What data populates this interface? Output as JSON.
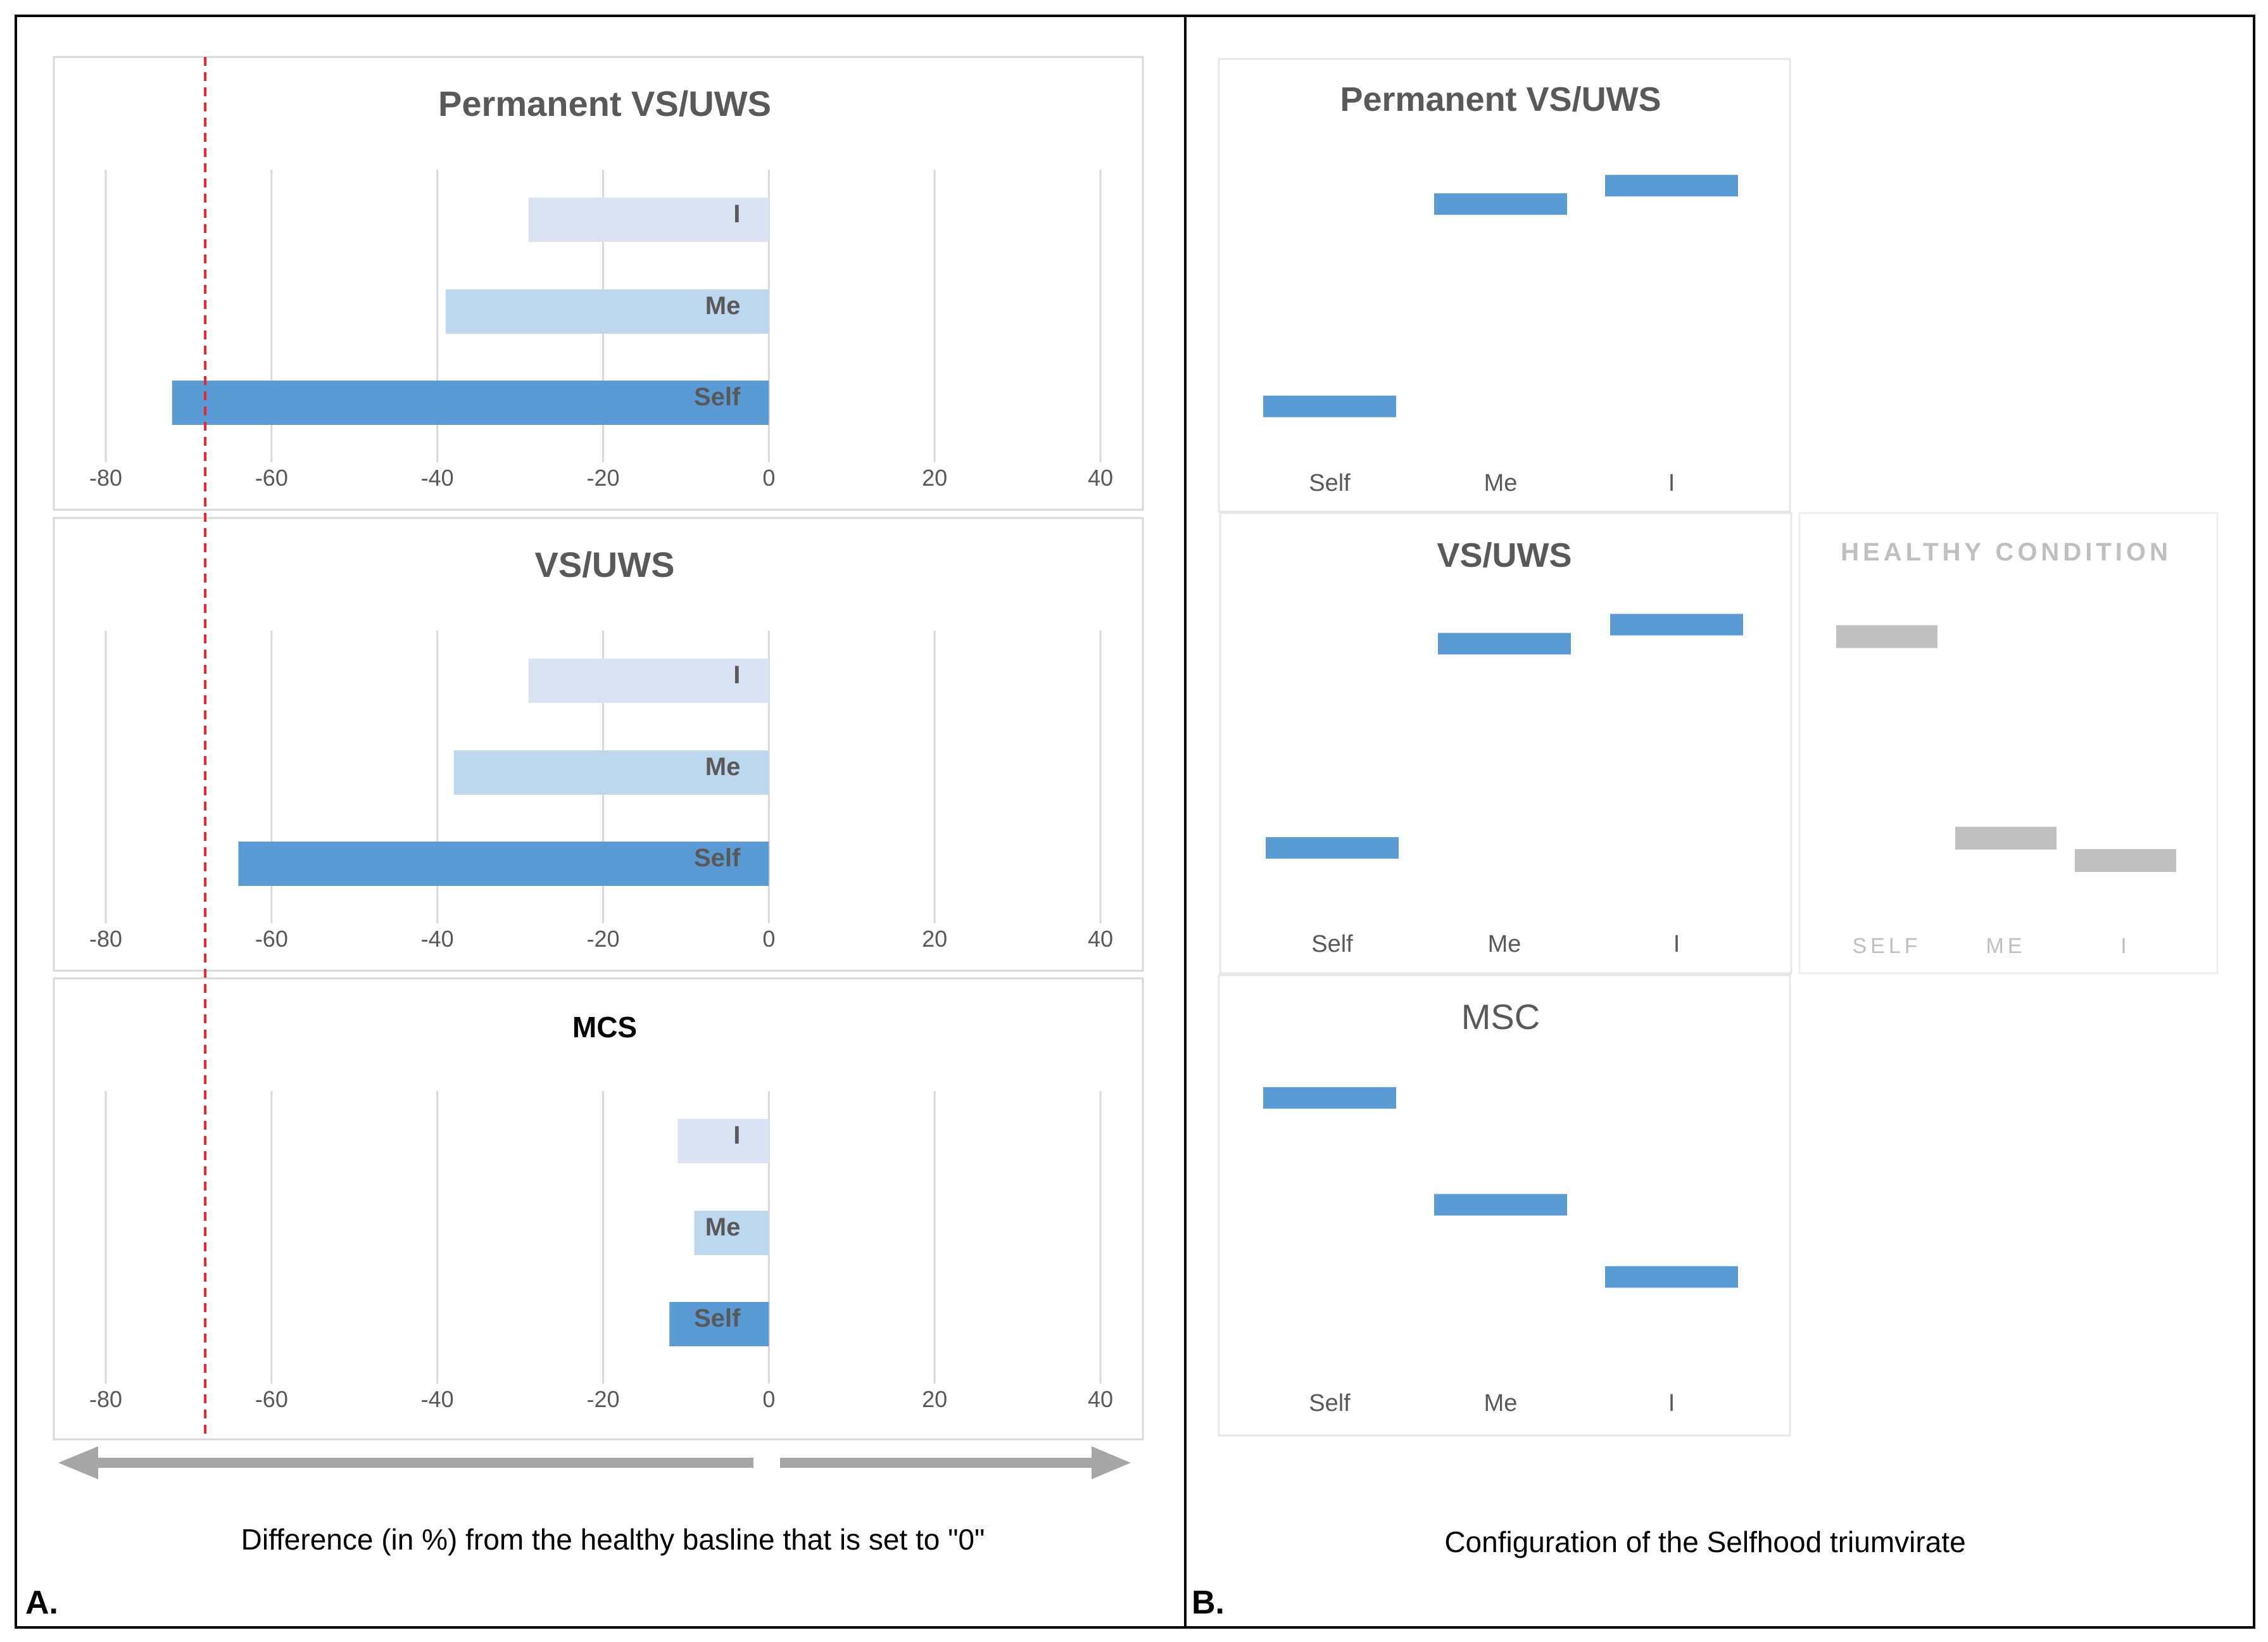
{
  "chart_data": [
    {
      "type": "bar",
      "orientation": "horizontal",
      "panel": "A",
      "title": "Permanent VS/UWS",
      "categories": [
        "I",
        "Me",
        "Self"
      ],
      "values": [
        -29,
        -39,
        -72
      ],
      "xlim": [
        -80,
        40
      ],
      "ticks": [
        -80,
        -60,
        -40,
        -20,
        0,
        20,
        40
      ],
      "grid": true
    },
    {
      "type": "bar",
      "orientation": "horizontal",
      "panel": "A",
      "title": "VS/UWS",
      "categories": [
        "I",
        "Me",
        "Self"
      ],
      "values": [
        -29,
        -38,
        -64
      ],
      "xlim": [
        -80,
        40
      ],
      "ticks": [
        -80,
        -60,
        -40,
        -20,
        0,
        20,
        40
      ],
      "grid": true
    },
    {
      "type": "bar",
      "orientation": "horizontal",
      "panel": "A",
      "title": "MCS",
      "categories": [
        "I",
        "Me",
        "Self"
      ],
      "values": [
        -11,
        -9,
        -12
      ],
      "xlim": [
        -80,
        40
      ],
      "ticks": [
        -80,
        -60,
        -40,
        -20,
        0,
        20,
        40
      ],
      "grid": true
    },
    {
      "type": "scatter",
      "marker": "horizontal-bar",
      "panel": "B",
      "title": "Permanent VS/UWS",
      "categories": [
        "Self",
        "Me",
        "I"
      ],
      "values": [
        8,
        85,
        92
      ],
      "ylim": [
        0,
        100
      ]
    },
    {
      "type": "scatter",
      "marker": "horizontal-bar",
      "panel": "B",
      "title": "VS/UWS",
      "categories": [
        "Self",
        "Me",
        "I"
      ],
      "values": [
        10,
        85,
        92
      ],
      "ylim": [
        0,
        100
      ]
    },
    {
      "type": "scatter",
      "marker": "horizontal-bar",
      "panel": "B",
      "title": "HEALTHY CONDITION",
      "categories": [
        "SELF",
        "ME",
        "I"
      ],
      "values": [
        92,
        20,
        12
      ],
      "ylim": [
        0,
        100
      ]
    },
    {
      "type": "scatter",
      "marker": "horizontal-bar",
      "panel": "B",
      "title": "MSC",
      "categories": [
        "Self",
        "Me",
        "I"
      ],
      "values": [
        92,
        52,
        25
      ],
      "ylim": [
        0,
        100
      ]
    }
  ],
  "reference_line": {
    "value": -68,
    "style": "dashed",
    "color": "#e8262b"
  },
  "captions": {
    "a_caption": "Difference (in %) from the healthy basline that is set to \"0\"",
    "b_caption": "Configuration of the Selfhood triumvirate",
    "a_label": "A.",
    "b_label": "B."
  },
  "colors": {
    "self": "#5b9bd5",
    "me": "#bdd7ee",
    "i": "#dae3f3",
    "config_bar": "#5b9bd5",
    "healthy_bar": "#c0c0c0",
    "arrow": "#a6a6a6",
    "text": "#595959",
    "grid": "#d9d9d9"
  }
}
